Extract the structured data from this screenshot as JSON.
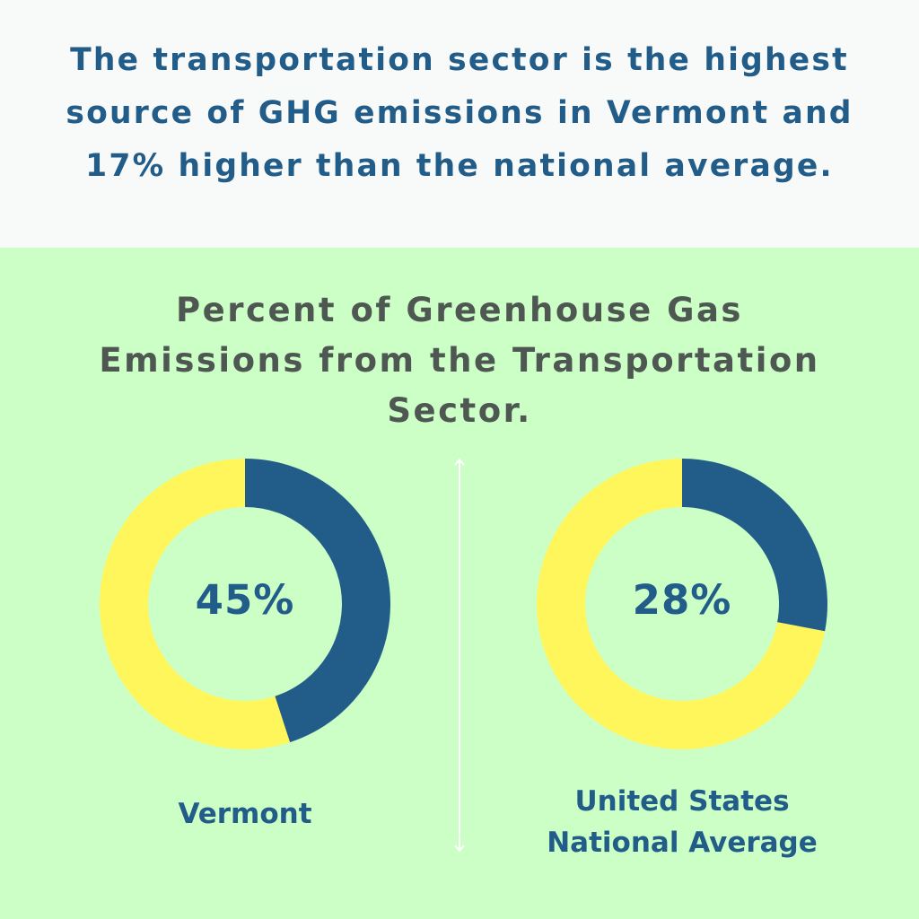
{
  "headline": "The transportation sector is the highest source of GHG emissions in Vermont and 17% higher than the national average.",
  "colors": {
    "header_background": "#f8faf9",
    "chart_background": "#ccffc6",
    "transportation_share": "#225c89",
    "remaining_share": "#fef65b",
    "text_primary": "#225c89",
    "text_secondary": "#4e5752",
    "divider": "#ffffff"
  },
  "chart_data": [
    {
      "type": "pie",
      "title": "Percent of Greenhouse Gas Emissions from the Transportation Sector.",
      "label": "Vermont",
      "center_text": "45%",
      "values": [
        45,
        55
      ],
      "slice_colors": [
        "#225c89",
        "#fef65b"
      ]
    },
    {
      "type": "pie",
      "title": "Percent of Greenhouse Gas Emissions from the Transportation Sector.",
      "label": "United States National Average",
      "center_text": "28%",
      "values": [
        28,
        72
      ],
      "slice_colors": [
        "#225c89",
        "#fef65b"
      ]
    }
  ]
}
